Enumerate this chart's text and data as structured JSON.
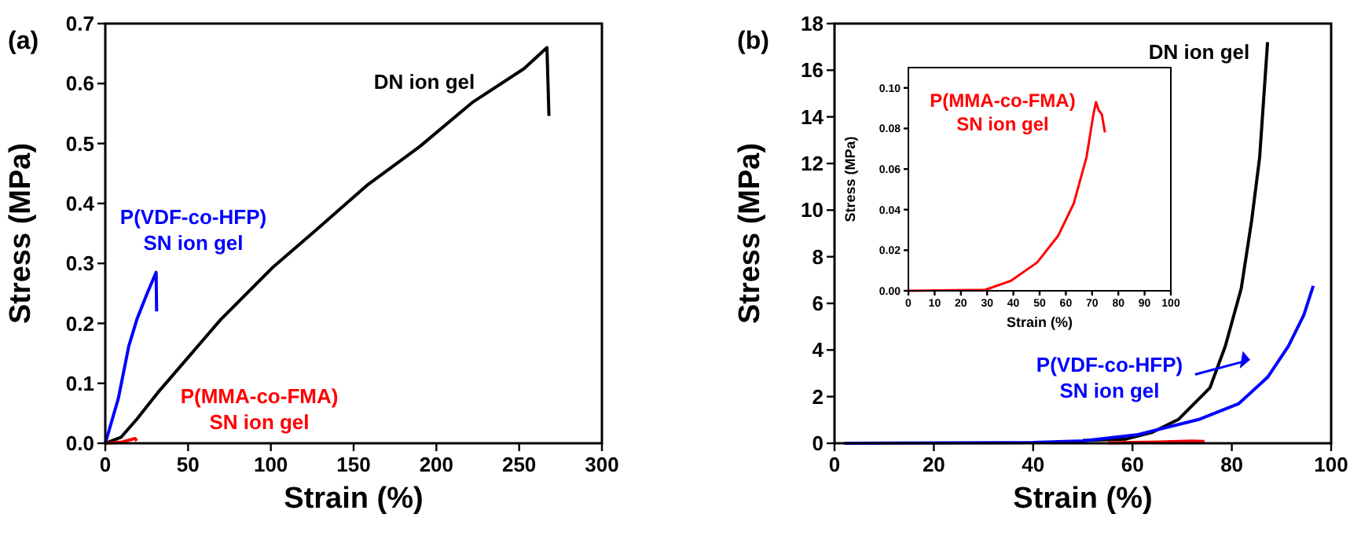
{
  "chart_data": [
    {
      "type": "line",
      "title": "(a)",
      "xlabel": "Strain (%)",
      "ylabel": "Stress (MPa)",
      "xlim": [
        0,
        300
      ],
      "ylim": [
        0,
        0.7
      ],
      "xticks": [
        0,
        50,
        100,
        150,
        200,
        250,
        300
      ],
      "yticks": [
        {
          "value": 0,
          "label": "0.0"
        },
        0.1,
        0.2,
        0.3,
        0.4,
        0.5,
        0.6,
        0.7
      ],
      "grid": false,
      "marker": "none",
      "series": [
        {
          "name": "DN ion gel",
          "color": "#000000",
          "x": [
            0,
            9.5,
            19,
            31.6,
            50.6,
            69.6,
            101,
            126.6,
            158,
            190,
            221.5,
            253,
            266.8,
            268
          ],
          "values": [
            0,
            0.01,
            0.04,
            0.084,
            0.145,
            0.206,
            0.293,
            0.354,
            0.43,
            0.495,
            0.568,
            0.625,
            0.66,
            0.546
          ]
        },
        {
          "name": "P(VDF-co-HFP)\nSN ion gel",
          "color": "#0000ff",
          "x": [
            0,
            7.9,
            14.2,
            19,
            25.3,
            30.7,
            31
          ],
          "values": [
            0,
            0.075,
            0.162,
            0.206,
            0.25,
            0.285,
            0.22
          ]
        },
        {
          "name": "P(MMA-co-FMA)\nSN ion gel",
          "color": "#ff0000",
          "x": [
            0,
            10,
            18,
            19
          ],
          "values": [
            0,
            0.002,
            0.008,
            0.004
          ]
        }
      ]
    },
    {
      "type": "line",
      "title": "(b)",
      "xlabel": "Strain (%)",
      "ylabel": "Stress (MPa)",
      "xlim": [
        0,
        100
      ],
      "ylim": [
        0,
        18
      ],
      "xticks": [
        0,
        20,
        40,
        60,
        80,
        100
      ],
      "yticks": [
        0,
        2,
        4,
        6,
        8,
        10,
        12,
        14,
        16,
        18
      ],
      "grid": false,
      "marker": "none",
      "series": [
        {
          "name": "DN ion gel",
          "color": "#000000",
          "x": [
            50,
            58.7,
            64,
            69.3,
            75.6,
            78.7,
            81.9,
            84,
            85.6,
            87.2
          ],
          "values": [
            0.12,
            0.18,
            0.47,
            1.03,
            2.38,
            4.17,
            6.64,
            9.56,
            12.25,
            17.2
          ]
        },
        {
          "name": "P(VDF-co-HFP)\nSN ion gel",
          "color": "#0000ff",
          "x": [
            2,
            40,
            50,
            60.8,
            73.5,
            81.4,
            87.2,
            91.4,
            94.5,
            96.4
          ],
          "values": [
            0,
            0.03,
            0.1,
            0.36,
            1.03,
            1.7,
            2.83,
            4.17,
            5.5,
            6.75
          ]
        },
        {
          "color": "#ff0000",
          "x": [
            55,
            65,
            72,
            74.5
          ],
          "values": [
            0.02,
            0.05,
            0.09,
            0.08
          ]
        }
      ]
    },
    {
      "type": "line",
      "xlabel": "Strain (%)",
      "ylabel": "Stress (MPa)",
      "xlim": [
        0,
        100
      ],
      "ylim": [
        0,
        0.11
      ],
      "xticks": [
        0,
        10,
        20,
        30,
        40,
        50,
        60,
        70,
        80,
        90,
        100
      ],
      "yticks": [
        {
          "value": 0,
          "label": "0.00"
        },
        {
          "value": 0.02,
          "label": "0.02"
        },
        {
          "value": 0.04,
          "label": "0.04"
        },
        {
          "value": 0.06,
          "label": "0.06"
        },
        {
          "value": 0.08,
          "label": "0.08"
        },
        {
          "value": 0.1,
          "label": "0.10"
        }
      ],
      "grid": false,
      "marker": "none",
      "series": [
        {
          "name": "P(MMA-co-FMA)\nSN ion gel",
          "color": "#ff0000",
          "x": [
            0,
            29.3,
            39.2,
            49.1,
            57,
            63,
            67.9,
            70.5,
            71.5,
            72.5,
            73.7,
            74.9
          ],
          "values": [
            0,
            0.0005,
            0.005,
            0.014,
            0.027,
            0.043,
            0.066,
            0.087,
            0.093,
            0.089,
            0.087,
            0.078
          ]
        }
      ]
    }
  ]
}
